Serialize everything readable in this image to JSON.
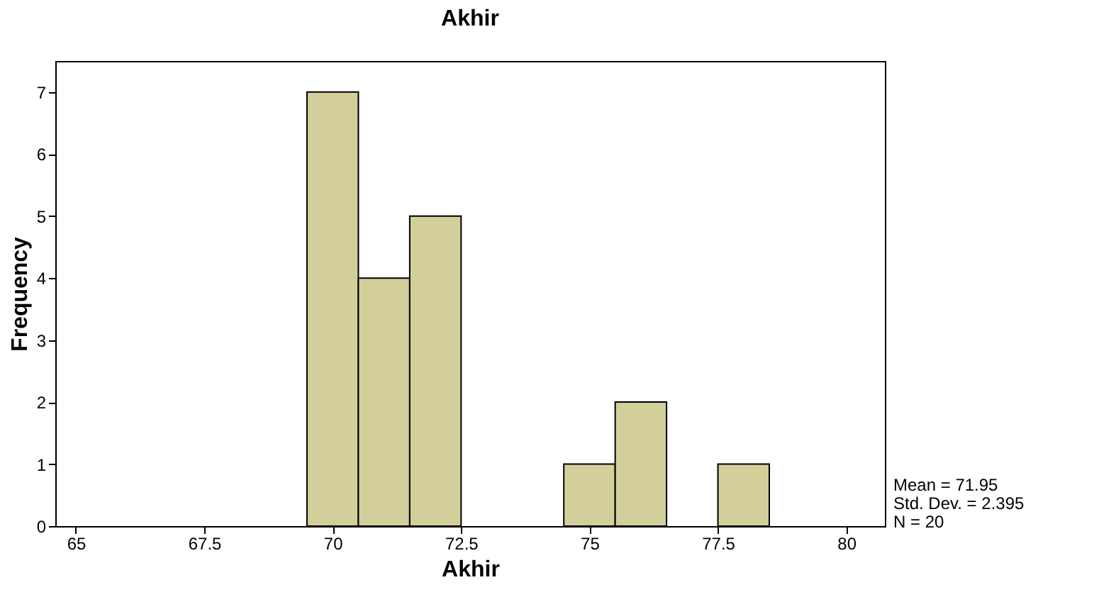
{
  "chart_data": {
    "type": "histogram",
    "title": "Akhir",
    "xlabel": "Akhir",
    "ylabel": "Frequency",
    "bins": [
      69.5,
      70.5,
      71.5,
      72.5,
      73.5,
      74.5,
      75.5,
      76.5,
      77.5,
      78.5
    ],
    "values": [
      7,
      4,
      5,
      0,
      0,
      1,
      2,
      0,
      1
    ],
    "color": "#d3cf9a",
    "xlim": [
      64.6,
      80.75
    ],
    "xticks": [
      65,
      67.5,
      70,
      72.5,
      75,
      77.5,
      80
    ],
    "ylim": [
      0,
      7.5
    ],
    "yticks": [
      0,
      1,
      2,
      3,
      4,
      5,
      6,
      7
    ],
    "grid": false,
    "annotations": [
      "Mean = 71.95",
      "Std. Dev. = 2.395",
      "N = 20"
    ]
  }
}
